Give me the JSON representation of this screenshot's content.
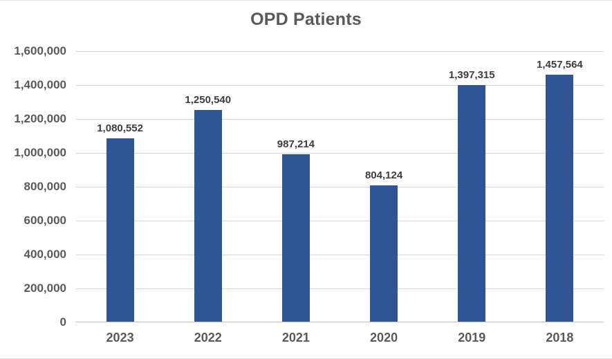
{
  "title": "OPD Patients",
  "chart_data": {
    "type": "bar",
    "title": "OPD Patients",
    "categories": [
      "2023",
      "2022",
      "2021",
      "2020",
      "2019",
      "2018"
    ],
    "values": [
      1080552,
      1250540,
      987214,
      804124,
      1397315,
      1457564
    ],
    "value_labels": [
      "1,080,552",
      "1,250,540",
      "987,214",
      "804,124",
      "1,397,315",
      "1,457,564"
    ],
    "xlabel": "",
    "ylabel": "",
    "ylim": [
      0,
      1600000
    ],
    "ytick_step": 200000,
    "yticks": [
      0,
      200000,
      400000,
      600000,
      800000,
      1000000,
      1200000,
      1400000,
      1600000
    ],
    "ytick_labels": [
      "0",
      "200,000",
      "400,000",
      "600,000",
      "800,000",
      "1,000,000",
      "1,200,000",
      "1,400,000",
      "1,600,000"
    ],
    "grid": true,
    "legend": false
  },
  "colors": {
    "bar": "#2f5597",
    "title_text": "#595959",
    "axis_text": "#595959",
    "data_label_text": "#3d3d3d",
    "gridline": "#d9d9d9",
    "axis_line": "#bfbfbf",
    "background": "#ffffff"
  }
}
